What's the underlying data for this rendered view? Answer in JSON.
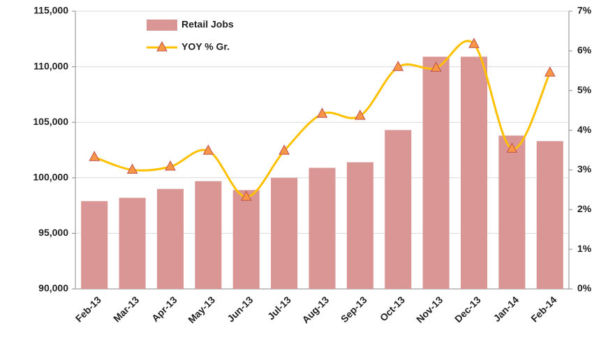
{
  "chart_data": {
    "type": "bar-line",
    "categories": [
      "Feb-13",
      "Mar-13",
      "Apr-13",
      "May-13",
      "Jun-13",
      "Jul-13",
      "Aug-13",
      "Sep-13",
      "Oct-13",
      "Nov-13",
      "Dec-13",
      "Jan-14",
      "Feb-14"
    ],
    "series": [
      {
        "name": "Retail Jobs",
        "type": "bar",
        "color": "#d99694",
        "values": [
          97900,
          98200,
          99000,
          99700,
          98900,
          100000,
          100900,
          101400,
          104300,
          110900,
          110900,
          103800,
          103300
        ]
      },
      {
        "name": "YOY % Gr.",
        "type": "line",
        "axis": "y2",
        "color": "#ffc000",
        "marker_color": "#f79646",
        "values": [
          3.32,
          3.0,
          3.08,
          3.48,
          2.32,
          3.48,
          4.41,
          4.36,
          5.59,
          5.57,
          6.17,
          3.53,
          5.45
        ]
      }
    ],
    "ylim": [
      90000,
      115000
    ],
    "yticks": [
      {
        "value": 90000,
        "label": "90,000"
      },
      {
        "value": 95000,
        "label": "95,000"
      },
      {
        "value": 100000,
        "label": "100,000"
      },
      {
        "value": 105000,
        "label": "105,000"
      },
      {
        "value": 110000,
        "label": "110,000"
      },
      {
        "value": 115000,
        "label": "115,000"
      }
    ],
    "y2lim": [
      0,
      7
    ],
    "y2ticks": [
      {
        "value": 0,
        "label": "0%"
      },
      {
        "value": 1,
        "label": "1%"
      },
      {
        "value": 2,
        "label": "2%"
      },
      {
        "value": 3,
        "label": "3%"
      },
      {
        "value": 4,
        "label": "4%"
      },
      {
        "value": 5,
        "label": "5%"
      },
      {
        "value": 6,
        "label": "6%"
      },
      {
        "value": 7,
        "label": "7%"
      }
    ],
    "grid": true,
    "legend": "top-left"
  }
}
